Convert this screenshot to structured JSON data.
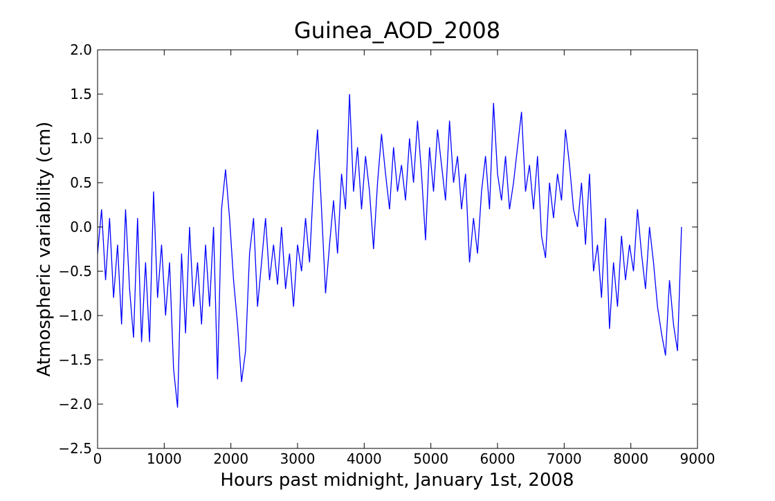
{
  "chart_data": {
    "type": "line",
    "title": "Guinea_AOD_2008",
    "x_label": "Hours past midnight, January 1st, 2008",
    "y_label": "Atmospheric variability (cm)",
    "xlim": [
      0,
      9000
    ],
    "ylim": [
      -2.5,
      2.0
    ],
    "xticks": [
      0,
      1000,
      2000,
      3000,
      4000,
      5000,
      6000,
      7000,
      8000,
      9000
    ],
    "yticks": [
      {
        "value": -2.5,
        "label": "−2.5"
      },
      {
        "value": -2.0,
        "label": "−2.0"
      },
      {
        "value": -1.5,
        "label": "−1.5"
      },
      {
        "value": -1.0,
        "label": "−1.0"
      },
      {
        "value": -0.5,
        "label": "−0.5"
      },
      {
        "value": 0.0,
        "label": "0.0"
      },
      0.5,
      {
        "value": 1.0,
        "label": "1.0"
      },
      1.5,
      {
        "value": 2.0,
        "label": "2.0"
      }
    ],
    "x": [
      0,
      60,
      120,
      180,
      240,
      300,
      360,
      420,
      480,
      540,
      600,
      660,
      720,
      780,
      840,
      900,
      960,
      1020,
      1080,
      1140,
      1200,
      1260,
      1320,
      1380,
      1440,
      1500,
      1560,
      1620,
      1680,
      1740,
      1800,
      1860,
      1920,
      1980,
      2040,
      2100,
      2160,
      2220,
      2280,
      2340,
      2400,
      2460,
      2520,
      2580,
      2640,
      2700,
      2760,
      2820,
      2880,
      2940,
      3000,
      3060,
      3120,
      3180,
      3240,
      3300,
      3360,
      3420,
      3480,
      3540,
      3600,
      3660,
      3720,
      3780,
      3840,
      3900,
      3960,
      4020,
      4080,
      4140,
      4200,
      4260,
      4320,
      4380,
      4440,
      4500,
      4560,
      4620,
      4680,
      4740,
      4800,
      4860,
      4920,
      4980,
      5040,
      5100,
      5160,
      5220,
      5280,
      5340,
      5400,
      5460,
      5520,
      5580,
      5640,
      5700,
      5760,
      5820,
      5880,
      5940,
      6000,
      6060,
      6120,
      6180,
      6240,
      6300,
      6360,
      6420,
      6480,
      6540,
      6600,
      6660,
      6720,
      6780,
      6840,
      6900,
      6960,
      7020,
      7080,
      7140,
      7200,
      7260,
      7320,
      7380,
      7440,
      7500,
      7560,
      7620,
      7680,
      7740,
      7800,
      7860,
      7920,
      7980,
      8040,
      8100,
      8160,
      8220,
      8280,
      8340,
      8400,
      8460,
      8520,
      8580,
      8640,
      8700,
      8760
    ],
    "series": [
      {
        "color": "#0000ff",
        "values": [
          -0.3,
          0.2,
          -0.6,
          0.1,
          -0.8,
          -0.2,
          -1.1,
          0.2,
          -0.7,
          -1.25,
          0.1,
          -1.3,
          -0.4,
          -1.3,
          0.4,
          -0.8,
          -0.2,
          -1.0,
          -0.4,
          -1.6,
          -2.04,
          -0.3,
          -1.2,
          0.0,
          -0.9,
          -0.4,
          -1.1,
          -0.2,
          -0.9,
          0.0,
          -1.72,
          0.2,
          0.65,
          0.1,
          -0.6,
          -1.1,
          -1.75,
          -1.4,
          -0.3,
          0.1,
          -0.9,
          -0.4,
          0.1,
          -0.6,
          -0.2,
          -0.65,
          0.0,
          -0.7,
          -0.3,
          -0.9,
          -0.2,
          -0.5,
          0.1,
          -0.4,
          0.5,
          1.1,
          0.2,
          -0.75,
          -0.2,
          0.3,
          -0.3,
          0.6,
          0.2,
          1.5,
          0.4,
          0.9,
          0.2,
          0.8,
          0.4,
          -0.25,
          0.5,
          1.05,
          0.6,
          0.2,
          0.9,
          0.4,
          0.7,
          0.3,
          1.0,
          0.5,
          1.2,
          0.6,
          -0.15,
          0.9,
          0.4,
          1.1,
          0.7,
          0.3,
          1.2,
          0.5,
          0.8,
          0.2,
          0.6,
          -0.4,
          0.1,
          -0.3,
          0.4,
          0.8,
          0.2,
          1.4,
          0.6,
          0.3,
          0.8,
          0.2,
          0.5,
          0.9,
          1.3,
          0.4,
          0.7,
          0.2,
          0.8,
          -0.1,
          -0.35,
          0.5,
          0.1,
          0.6,
          0.3,
          1.1,
          0.7,
          0.2,
          0.0,
          0.5,
          -0.2,
          0.6,
          -0.5,
          -0.2,
          -0.8,
          0.1,
          -1.15,
          -0.4,
          -0.9,
          -0.1,
          -0.6,
          -0.2,
          -0.5,
          0.2,
          -0.3,
          -0.7,
          0.0,
          -0.4,
          -0.9,
          -1.2,
          -1.45,
          -0.6,
          -1.1,
          -1.4,
          0.0
        ]
      }
    ]
  }
}
